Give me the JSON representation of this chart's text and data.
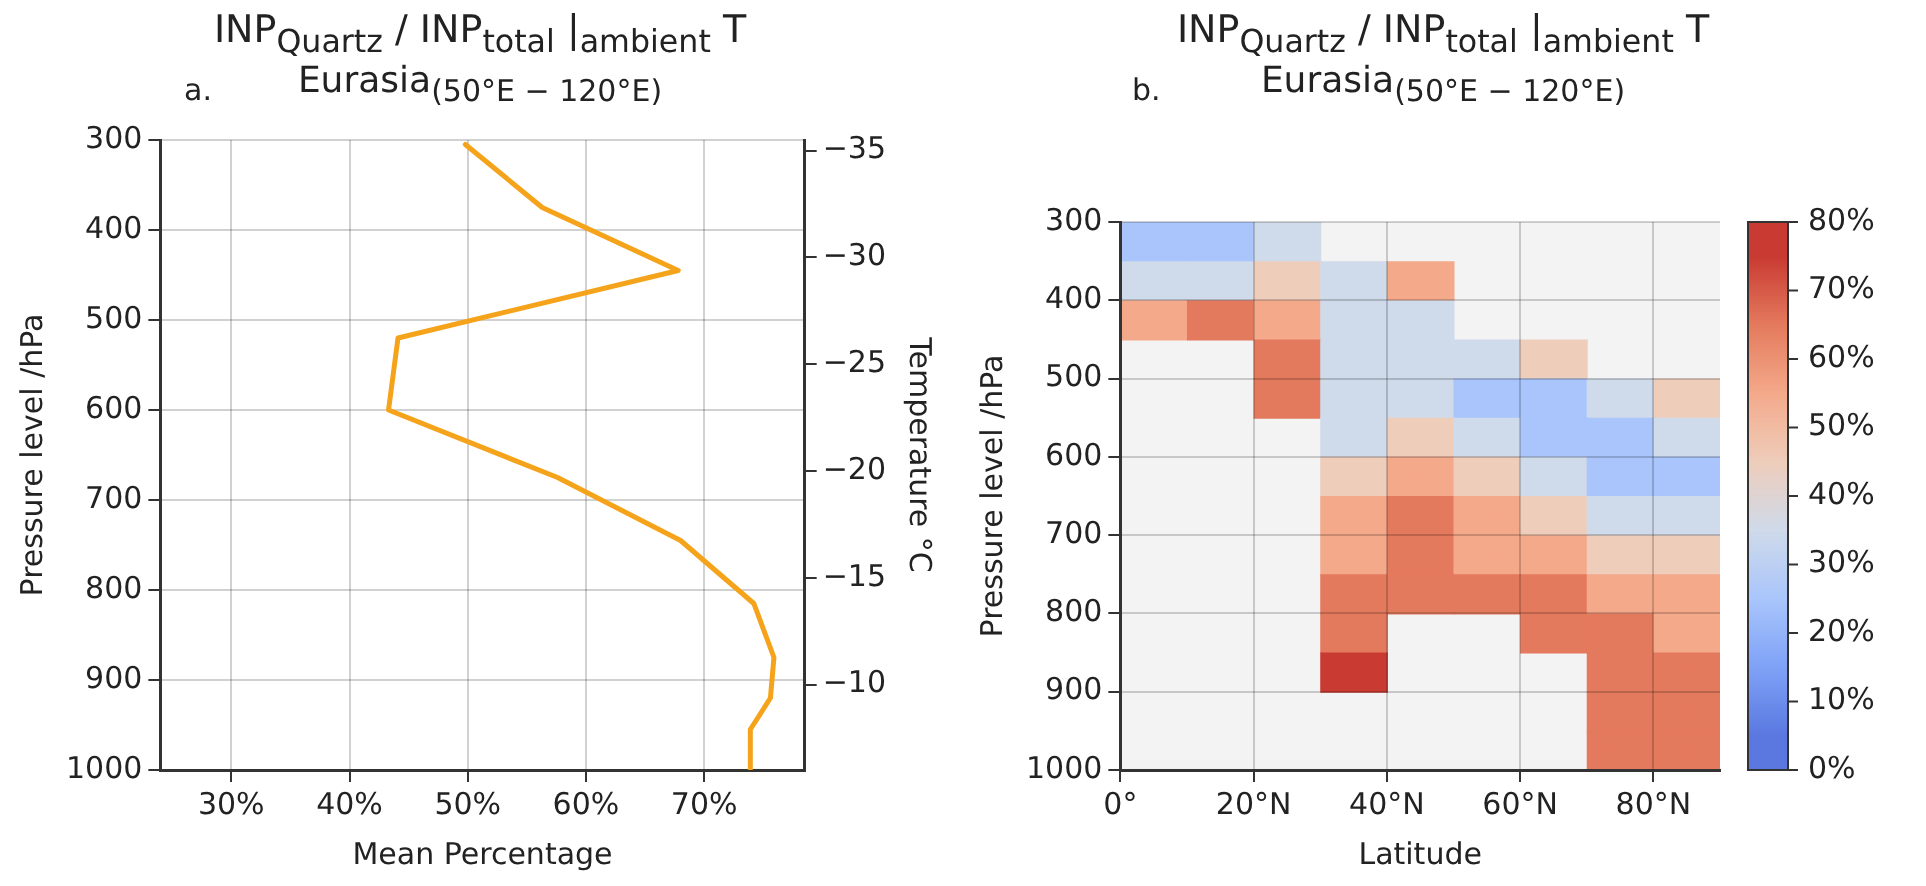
{
  "chart_data": [
    {
      "type": "line",
      "title": "INP$_{Quartz}$ / INP$_{total}$ |$_{ambient}$ T",
      "subtitle": "Eurasia$_{(50°E − 120°E)}$",
      "annotations": [
        "a."
      ],
      "xlabel": "Mean Percentage",
      "ylabel": "Pressure level /hPa",
      "y2label": "Temperature °C",
      "x": [
        49.8,
        56.3,
        67.8,
        44.1,
        43.3,
        57.6,
        68.0,
        74.2,
        75.9,
        75.6,
        73.9,
        73.9
      ],
      "values": [
        305,
        375,
        445,
        520,
        600,
        675,
        745,
        815,
        875,
        920,
        955,
        1000
      ],
      "color": "#f5a31a",
      "xlim": [
        24,
        78.5
      ],
      "xticks": [
        {
          "value": 30,
          "label": "30%"
        },
        {
          "value": 40,
          "label": "40%"
        },
        {
          "value": 50,
          "label": "50%"
        },
        {
          "value": 60,
          "label": "60%"
        },
        {
          "value": 70,
          "label": "70%"
        }
      ],
      "ylim": [
        1000,
        300
      ],
      "yticks": [
        300,
        400,
        500,
        600,
        700,
        800,
        900,
        1000
      ],
      "y2lim": [
        -6,
        -35.5
      ],
      "y2ticks": [
        -35,
        -30,
        -25,
        -20,
        -15,
        -10
      ],
      "grid": true,
      "legend": false
    },
    {
      "type": "scatter",
      "title": "INP$_{Quartz}$ / INP$_{total}$ |$_{ambient}$ T",
      "subtitle": "Eurasia$_{(50°E − 120°E)}$",
      "annotations": [
        "b."
      ],
      "xlabel": "Latitude",
      "ylabel": "Pressure level /hPa",
      "x": [
        5,
        15,
        25,
        5,
        15,
        25,
        35,
        45,
        5,
        15,
        25,
        35,
        45,
        25,
        35,
        45,
        55,
        65,
        25,
        35,
        45,
        55,
        65,
        75,
        85,
        35,
        45,
        55,
        65,
        75,
        85,
        35,
        45,
        55,
        65,
        75,
        85,
        35,
        45,
        55,
        65,
        75,
        85,
        35,
        45,
        55,
        65,
        75,
        85,
        35,
        45,
        55,
        65,
        75,
        85,
        35,
        65,
        75,
        85,
        35,
        75,
        85,
        75,
        85,
        75,
        85
      ],
      "values": [
        325,
        325,
        325,
        375,
        375,
        375,
        375,
        375,
        425,
        425,
        425,
        425,
        425,
        475,
        475,
        475,
        475,
        475,
        525,
        525,
        525,
        525,
        525,
        525,
        525,
        575,
        575,
        575,
        575,
        575,
        575,
        625,
        625,
        625,
        625,
        625,
        625,
        675,
        675,
        675,
        675,
        675,
        675,
        725,
        725,
        725,
        725,
        725,
        725,
        775,
        775,
        775,
        775,
        775,
        775,
        825,
        825,
        825,
        825,
        875,
        875,
        875,
        925,
        925,
        975,
        975
      ],
      "cvalues": [
        25,
        25,
        35,
        35,
        35,
        45,
        35,
        55,
        55,
        65,
        55,
        35,
        35,
        65,
        35,
        35,
        35,
        45,
        65,
        35,
        35,
        25,
        25,
        35,
        45,
        35,
        45,
        35,
        25,
        25,
        35,
        45,
        55,
        45,
        35,
        25,
        25,
        55,
        65,
        55,
        45,
        35,
        35,
        55,
        65,
        55,
        55,
        45,
        45,
        65,
        65,
        65,
        65,
        55,
        55,
        65,
        65,
        65,
        55,
        75,
        65,
        65,
        65,
        65,
        65,
        65
      ],
      "marker": "square",
      "xlim": [
        0,
        90
      ],
      "xticks": [
        {
          "value": 0,
          "label": "0°"
        },
        {
          "value": 20,
          "label": "20°N"
        },
        {
          "value": 40,
          "label": "40°N"
        },
        {
          "value": 60,
          "label": "60°N"
        },
        {
          "value": 80,
          "label": "80°N"
        }
      ],
      "ylim": [
        1000,
        300
      ],
      "yticks": [
        300,
        400,
        500,
        600,
        700,
        800,
        900,
        1000
      ],
      "clim": [
        0,
        80
      ],
      "cticks": [
        {
          "value": 0,
          "label": "0%"
        },
        {
          "value": 10,
          "label": "10%"
        },
        {
          "value": 20,
          "label": "20%"
        },
        {
          "value": 30,
          "label": "30%"
        },
        {
          "value": 40,
          "label": "40%"
        },
        {
          "value": 50,
          "label": "50%"
        },
        {
          "value": 60,
          "label": "60%"
        },
        {
          "value": 70,
          "label": "70%"
        },
        {
          "value": 80,
          "label": "80%"
        }
      ],
      "grid": true,
      "legend": false
    }
  ]
}
